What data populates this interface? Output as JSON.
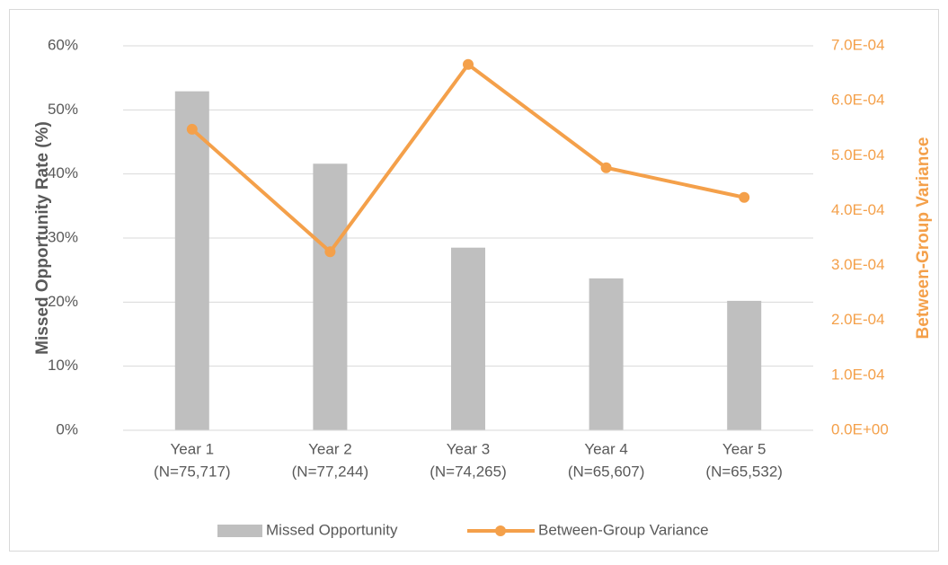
{
  "chart_data": {
    "type": "bar_line",
    "categories": [
      [
        "Year 1",
        "(N=75,717)"
      ],
      [
        "Year 2",
        "(N=77,244)"
      ],
      [
        "Year 3",
        "(N=74,265)"
      ],
      [
        "Year 4",
        "(N=65,607)"
      ],
      [
        "Year 5",
        "(N=65,532)"
      ]
    ],
    "series": [
      {
        "name": "Missed Opportunity",
        "type": "bar",
        "color": "#bfbfbf",
        "values": [
          52.9,
          41.6,
          28.5,
          23.7,
          20.2
        ]
      },
      {
        "name": "Between-Group Variance",
        "type": "line",
        "axis": "y2",
        "color": "#f4a04a",
        "values": [
          0.000548,
          0.000325,
          0.000666,
          0.000478,
          0.000424
        ]
      }
    ],
    "ylabel": "Missed Opportunity Rate (%)",
    "y2label": "Between-Group Variance",
    "ylim": [
      0,
      60
    ],
    "yticks": [
      {
        "value": 0,
        "label": "0%"
      },
      {
        "value": 10,
        "label": "10%"
      },
      {
        "value": 20,
        "label": "20%"
      },
      {
        "value": 30,
        "label": "30%"
      },
      {
        "value": 40,
        "label": "40%"
      },
      {
        "value": 50,
        "label": "50%"
      },
      {
        "value": 60,
        "label": "60%"
      }
    ],
    "y2lim": [
      0,
      0.0007
    ],
    "y2ticks": [
      {
        "value": 0,
        "label": "0.0E+00"
      },
      {
        "value": 0.0001,
        "label": "1.0E-04"
      },
      {
        "value": 0.0002,
        "label": "2.0E-04"
      },
      {
        "value": 0.0003,
        "label": "3.0E-04"
      },
      {
        "value": 0.0004,
        "label": "4.0E-04"
      },
      {
        "value": 0.0005,
        "label": "5.0E-04"
      },
      {
        "value": 0.0006,
        "label": "6.0E-04"
      },
      {
        "value": 0.0007,
        "label": "7.0E-04"
      }
    ],
    "grid": true,
    "legend": "bottom"
  }
}
